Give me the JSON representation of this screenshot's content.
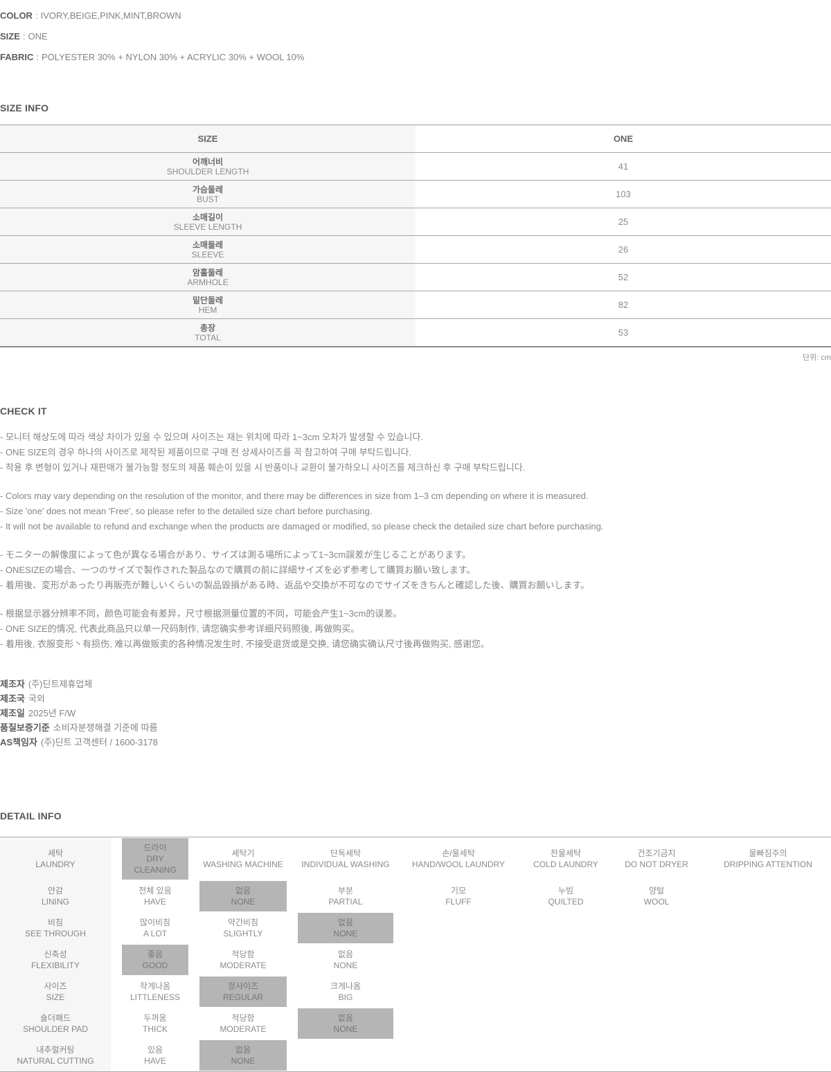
{
  "strings": {
    "sep": ":"
  },
  "specs": [
    {
      "label": "COLOR",
      "value": "IVORY,BEIGE,PINK,MINT,BROWN"
    },
    {
      "label": "SIZE",
      "value": "ONE"
    },
    {
      "label": "FABRIC",
      "value": "POLYESTER 30% + NYLON 30% + ACRYLIC 30% + WOOL 10%"
    }
  ],
  "size_info": {
    "heading": "SIZE INFO",
    "unit_note": "단위: cm",
    "columns": {
      "size": "SIZE",
      "one": "ONE"
    },
    "rows": [
      {
        "kr": "어깨너비",
        "en": "SHOULDER LENGTH",
        "value": "41"
      },
      {
        "kr": "가슴둘레",
        "en": "BUST",
        "value": "103"
      },
      {
        "kr": "소매길이",
        "en": "SLEEVE LENGTH",
        "value": "25"
      },
      {
        "kr": "소매둘레",
        "en": "SLEEVE",
        "value": "26"
      },
      {
        "kr": "암홀둘레",
        "en": "ARMHOLE",
        "value": "52"
      },
      {
        "kr": "밑단둘레",
        "en": "HEM",
        "value": "82"
      },
      {
        "kr": "총장",
        "en": "TOTAL",
        "value": "53"
      }
    ]
  },
  "check_it": {
    "heading": "CHECK IT",
    "sections": [
      {
        "lines": [
          "- 모니터 해상도에 따라 색상 차이가 있을 수 있으며 사이즈는 재는 위치에 따라 1~3cm 오차가 발생할 수 있습니다.",
          "- ONE SIZE의 경우 하나의 사이즈로 제작된 제품이므로 구매 전 상세사이즈를 꼭 참고하여 구매 부탁드립니다.",
          "- 착용 후 변형이 있거나 재판매가 불가능할 정도의 제품 훼손이 있을 시 반품이나 교환이 불가하오니 사이즈를 체크하신 후 구매 부탁드립니다."
        ]
      },
      {
        "lines": [
          "- Colors may vary depending on the resolution of the monitor, and there may be differences in size from 1–3 cm depending on where it is measured.",
          "- Size 'one' does not mean 'Free', so please refer to the detailed size chart before purchasing.",
          "- It will not be available to refund and exchange when the products are damaged or modified, so please check the detailed size chart before purchasing."
        ]
      },
      {
        "lines": [
          "- モニターの解像度によって色が異なる場合があり、サイズは測る場所によって1~3cm誤差が生じることがあります。",
          "- ONESIZEの場合、一つのサイズで製作された製品なので購買の前に詳細サイズを必ず参考して購買お願い致します。",
          "- 着用後、変形があったり再販売が難しいくらいの製品毀損がある時、返品や交換が不可なのでサイズをきちんと確認した後、購買お願いします。"
        ]
      },
      {
        "lines": [
          "- 根据显示器分辨率不同，颜色可能会有差异，尺寸根据测量位置的不同，可能会产生1~3cm的误差。",
          "- ONE SIZE的情况, 代表此商品只以单一尺码制作, 请您确实参考详细尺码照後, 再做购买。",
          "- 着用後, 衣服变形丶有损伤, 难以再做贩卖的各种情况发生时, 不接受退货或是交换, 请您确实确认尺寸後再做购买, 感谢您。"
        ]
      }
    ]
  },
  "manufacturer": {
    "rows": [
      {
        "label": "제조자",
        "value": "(주)딘트제휴업체"
      },
      {
        "label": "제조국",
        "value": "국외"
      },
      {
        "label": "제조일",
        "value": "2025년 F/W"
      },
      {
        "label": "품질보증기준",
        "value": "소비자분쟁해결 기준에 따름"
      },
      {
        "label": "AS책임자",
        "value": "(주)딘트 고객센터 / 1600-3178"
      }
    ]
  },
  "detail_info": {
    "heading": "DETAIL INFO",
    "rows": [
      {
        "kr": "세탁",
        "en": "LAUNDRY",
        "options": [
          {
            "kr": "드라이",
            "en": "DRY CLEANING",
            "selected": true
          },
          {
            "kr": "세탁기",
            "en": "WASHING MACHINE",
            "selected": false
          },
          {
            "kr": "단독세탁",
            "en": "INDIVIDUAL WASHING",
            "selected": false
          },
          {
            "kr": "손/울세탁",
            "en": "HAND/WOOL LAUNDRY",
            "selected": false
          },
          {
            "kr": "찬물세탁",
            "en": "COLD LAUNDRY",
            "selected": false
          },
          {
            "kr": "건조기금지",
            "en": "DO NOT DRYER",
            "selected": false
          },
          {
            "kr": "물빠짐주의",
            "en": "DRIPPING ATTENTION",
            "selected": false
          }
        ]
      },
      {
        "kr": "안감",
        "en": "LINING",
        "options": [
          {
            "kr": "전체 있음",
            "en": "HAVE",
            "selected": false
          },
          {
            "kr": "없음",
            "en": "NONE",
            "selected": true
          },
          {
            "kr": "부분",
            "en": "PARTIAL",
            "selected": false
          },
          {
            "kr": "기모",
            "en": "FLUFF",
            "selected": false
          },
          {
            "kr": "누빔",
            "en": "QUILTED",
            "selected": false
          },
          {
            "kr": "양털",
            "en": "WOOL",
            "selected": false
          }
        ]
      },
      {
        "kr": "비침",
        "en": "SEE THROUGH",
        "options": [
          {
            "kr": "많이비침",
            "en": "A LOT",
            "selected": false
          },
          {
            "kr": "약간비침",
            "en": "SLIGHTLY",
            "selected": false
          },
          {
            "kr": "없음",
            "en": "NONE",
            "selected": true
          }
        ]
      },
      {
        "kr": "신축성",
        "en": "FLEXIBILITY",
        "options": [
          {
            "kr": "좋음",
            "en": "GOOD",
            "selected": true
          },
          {
            "kr": "적당함",
            "en": "MODERATE",
            "selected": false
          },
          {
            "kr": "없음",
            "en": "NONE",
            "selected": false
          }
        ]
      },
      {
        "kr": "사이즈",
        "en": "SIZE",
        "options": [
          {
            "kr": "작게나옴",
            "en": "LITTLENESS",
            "selected": false
          },
          {
            "kr": "정사이즈",
            "en": "REGULAR",
            "selected": true
          },
          {
            "kr": "크게나옴",
            "en": "BIG",
            "selected": false
          }
        ]
      },
      {
        "kr": "숄더패드",
        "en": "SHOULDER PAD",
        "options": [
          {
            "kr": "두꺼움",
            "en": "THICK",
            "selected": false
          },
          {
            "kr": "적당함",
            "en": "MODERATE",
            "selected": false
          },
          {
            "kr": "없음",
            "en": "NONE",
            "selected": true
          }
        ]
      },
      {
        "kr": "내추럴커팅",
        "en": "NATURAL CUTTING",
        "options": [
          {
            "kr": "있음",
            "en": "HAVE",
            "selected": false
          },
          {
            "kr": "없음",
            "en": "NONE",
            "selected": true
          }
        ]
      }
    ]
  },
  "colors": {
    "highlight_bg": "#b5b5b5",
    "label_column_bg": "#f6f6f6",
    "table_border": "#9a9a9a",
    "body_text": "#848484",
    "heading_text": "#565656"
  }
}
